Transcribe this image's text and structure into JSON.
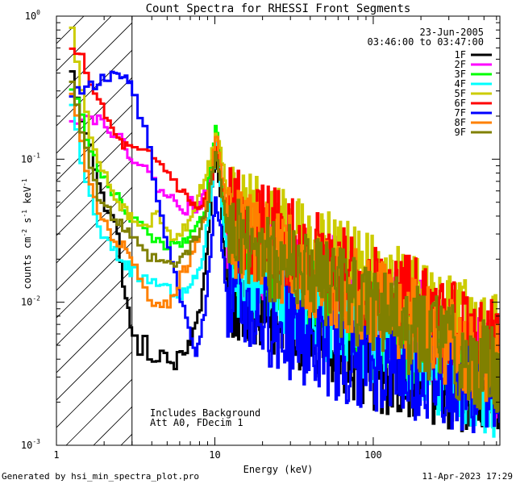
{
  "chart_data": {
    "type": "line",
    "title": "Count Spectra for RHESSI Front Segments",
    "xlabel": "Energy (keV)",
    "ylabel_main": "counts cm",
    "ylabel_exp1": "-2",
    "ylabel_mid": " s",
    "ylabel_exp2": "-1",
    "ylabel_end": " keV",
    "ylabel_exp3": "-1",
    "xscale": "log",
    "yscale": "log",
    "xlim": [
      1,
      630
    ],
    "ylim": [
      0.001,
      1.0
    ],
    "x_ticks": [
      {
        "v": 1,
        "label": "1"
      },
      {
        "v": 10,
        "label": "10"
      },
      {
        "v": 100,
        "label": "100"
      }
    ],
    "y_ticks": [
      {
        "v": 1,
        "base": "10",
        "exp": "0"
      },
      {
        "v": 0.1,
        "base": "10",
        "exp": "-1"
      },
      {
        "v": 0.01,
        "base": "10",
        "exp": "-2"
      },
      {
        "v": 0.001,
        "base": "10",
        "exp": "-3"
      }
    ],
    "date": "23-Jun-2005",
    "time_range": "03:46:00 to 03:47:00",
    "hatch_upper_kev": 3,
    "annotations": [
      "Includes Background",
      "Att A0, FDecim 1"
    ],
    "series": [
      {
        "name": "1F",
        "color": "#000000",
        "seed": 11,
        "noise": 0.5,
        "low": [
          [
            1.2,
            0.38
          ],
          [
            1.3,
            0.28
          ],
          [
            1.4,
            0.2
          ],
          [
            1.5,
            0.16
          ],
          [
            1.6,
            0.12
          ],
          [
            1.7,
            0.09
          ],
          [
            1.8,
            0.07
          ],
          [
            1.9,
            0.055
          ],
          [
            2.0,
            0.045
          ],
          [
            2.2,
            0.038
          ],
          [
            2.4,
            0.03
          ],
          [
            2.5,
            0.02
          ],
          [
            2.6,
            0.013
          ],
          [
            2.8,
            0.009
          ],
          [
            3.0,
            0.0055
          ],
          [
            3.2,
            0.0045
          ],
          [
            3.5,
            0.0055
          ],
          [
            3.8,
            0.0042
          ],
          [
            4.2,
            0.0038
          ],
          [
            4.6,
            0.0048
          ],
          [
            5.0,
            0.0037
          ],
          [
            5.5,
            0.0035
          ],
          [
            6.0,
            0.005
          ],
          [
            6.5,
            0.0045
          ],
          [
            7.0,
            0.0055
          ],
          [
            7.5,
            0.007
          ],
          [
            8.0,
            0.009
          ],
          [
            8.5,
            0.015
          ],
          [
            9.0,
            0.03
          ],
          [
            9.5,
            0.06
          ],
          [
            10.0,
            0.1
          ],
          [
            10.5,
            0.07
          ],
          [
            11,
            0.04
          ],
          [
            11.5,
            0.02
          ],
          [
            12,
            0.012
          ]
        ]
      },
      {
        "name": "2F",
        "color": "#ff00ff",
        "seed": 22,
        "noise": 0.55,
        "low": [
          [
            1.2,
            0.2
          ],
          [
            1.4,
            0.19
          ],
          [
            1.6,
            0.2
          ],
          [
            1.8,
            0.19
          ],
          [
            2.0,
            0.18
          ],
          [
            2.3,
            0.15
          ],
          [
            2.6,
            0.13
          ],
          [
            3.0,
            0.1
          ],
          [
            3.5,
            0.085
          ],
          [
            4.0,
            0.07
          ],
          [
            4.5,
            0.06
          ],
          [
            5.0,
            0.055
          ],
          [
            5.5,
            0.05
          ],
          [
            6.0,
            0.048
          ],
          [
            6.5,
            0.045
          ],
          [
            7.0,
            0.05
          ],
          [
            7.5,
            0.045
          ],
          [
            8.0,
            0.05
          ],
          [
            8.5,
            0.055
          ],
          [
            9.0,
            0.06
          ],
          [
            9.5,
            0.08
          ],
          [
            10,
            0.14
          ],
          [
            10.5,
            0.1
          ],
          [
            11,
            0.07
          ],
          [
            11.5,
            0.045
          ],
          [
            12,
            0.03
          ]
        ]
      },
      {
        "name": "3F",
        "color": "#00ff00",
        "seed": 33,
        "noise": 0.5,
        "low": [
          [
            1.2,
            0.32
          ],
          [
            1.3,
            0.25
          ],
          [
            1.5,
            0.15
          ],
          [
            1.7,
            0.1
          ],
          [
            1.9,
            0.075
          ],
          [
            2.2,
            0.06
          ],
          [
            2.5,
            0.05
          ],
          [
            2.8,
            0.042
          ],
          [
            3.2,
            0.035
          ],
          [
            3.6,
            0.03
          ],
          [
            4.0,
            0.028
          ],
          [
            4.5,
            0.026
          ],
          [
            5.0,
            0.025
          ],
          [
            5.5,
            0.024
          ],
          [
            6.0,
            0.026
          ],
          [
            6.5,
            0.025
          ],
          [
            7.0,
            0.03
          ],
          [
            7.5,
            0.032
          ],
          [
            8,
            0.038
          ],
          [
            8.5,
            0.045
          ],
          [
            9,
            0.07
          ],
          [
            9.5,
            0.1
          ],
          [
            10,
            0.17
          ],
          [
            10.5,
            0.12
          ],
          [
            11,
            0.07
          ],
          [
            11.5,
            0.04
          ],
          [
            12,
            0.025
          ]
        ]
      },
      {
        "name": "4F",
        "color": "#00ffff",
        "seed": 44,
        "noise": 0.5,
        "low": [
          [
            1.2,
            0.24
          ],
          [
            1.3,
            0.16
          ],
          [
            1.4,
            0.1
          ],
          [
            1.5,
            0.07
          ],
          [
            1.6,
            0.052
          ],
          [
            1.7,
            0.04
          ],
          [
            1.8,
            0.032
          ],
          [
            2.0,
            0.027
          ],
          [
            2.2,
            0.024
          ],
          [
            2.5,
            0.02
          ],
          [
            2.8,
            0.018
          ],
          [
            3.0,
            0.016
          ],
          [
            3.3,
            0.015
          ],
          [
            3.7,
            0.014
          ],
          [
            4,
            0.014
          ],
          [
            4.5,
            0.013
          ],
          [
            5,
            0.012
          ],
          [
            5.5,
            0.012
          ],
          [
            6,
            0.011
          ],
          [
            6.5,
            0.012
          ],
          [
            7,
            0.013
          ],
          [
            7.5,
            0.015
          ],
          [
            8,
            0.018
          ],
          [
            8.5,
            0.025
          ],
          [
            9,
            0.04
          ],
          [
            9.5,
            0.07
          ],
          [
            10,
            0.12
          ],
          [
            10.5,
            0.09
          ],
          [
            11,
            0.05
          ],
          [
            11.5,
            0.03
          ],
          [
            12,
            0.018
          ]
        ]
      },
      {
        "name": "5F",
        "color": "#cccc00",
        "seed": 55,
        "noise": 0.5,
        "low": [
          [
            1.2,
            0.8
          ],
          [
            1.3,
            0.5
          ],
          [
            1.4,
            0.3
          ],
          [
            1.5,
            0.2
          ],
          [
            1.6,
            0.14
          ],
          [
            1.8,
            0.1
          ],
          [
            2.0,
            0.08
          ],
          [
            2.2,
            0.06
          ],
          [
            2.5,
            0.048
          ],
          [
            2.8,
            0.04
          ],
          [
            3.2,
            0.035
          ],
          [
            3.6,
            0.032
          ],
          [
            4,
            0.045
          ],
          [
            4.5,
            0.035
          ],
          [
            5,
            0.03
          ],
          [
            5.5,
            0.028
          ],
          [
            6,
            0.03
          ],
          [
            6.5,
            0.035
          ],
          [
            7,
            0.04
          ],
          [
            7.5,
            0.05
          ],
          [
            8,
            0.06
          ],
          [
            8.5,
            0.07
          ],
          [
            9,
            0.09
          ],
          [
            9.5,
            0.11
          ],
          [
            10,
            0.16
          ],
          [
            10.5,
            0.14
          ],
          [
            11,
            0.1
          ],
          [
            11.5,
            0.07
          ],
          [
            12,
            0.045
          ]
        ]
      },
      {
        "name": "6F",
        "color": "#ff0000",
        "seed": 66,
        "noise": 0.55,
        "low": [
          [
            1.2,
            0.55
          ],
          [
            1.3,
            0.6
          ],
          [
            1.4,
            0.5
          ],
          [
            1.5,
            0.42
          ],
          [
            1.6,
            0.35
          ],
          [
            1.7,
            0.3
          ],
          [
            1.8,
            0.25
          ],
          [
            2.0,
            0.2
          ],
          [
            2.2,
            0.16
          ],
          [
            2.5,
            0.13
          ],
          [
            2.8,
            0.12
          ],
          [
            3.2,
            0.11
          ],
          [
            3.6,
            0.11
          ],
          [
            4,
            0.1
          ],
          [
            4.5,
            0.09
          ],
          [
            5,
            0.08
          ],
          [
            5.5,
            0.07
          ],
          [
            6,
            0.06
          ],
          [
            6.5,
            0.055
          ],
          [
            7,
            0.05
          ],
          [
            7.5,
            0.045
          ],
          [
            8,
            0.045
          ],
          [
            8.5,
            0.05
          ],
          [
            9,
            0.06
          ],
          [
            9.5,
            0.07
          ],
          [
            10,
            0.12
          ],
          [
            10.5,
            0.09
          ],
          [
            11,
            0.065
          ],
          [
            11.5,
            0.05
          ],
          [
            12,
            0.04
          ]
        ]
      },
      {
        "name": "7F",
        "color": "#0000ff",
        "seed": 77,
        "noise": 0.5,
        "low": [
          [
            1.2,
            0.3
          ],
          [
            1.4,
            0.3
          ],
          [
            1.6,
            0.32
          ],
          [
            1.8,
            0.35
          ],
          [
            2.0,
            0.38
          ],
          [
            2.2,
            0.38
          ],
          [
            2.5,
            0.37
          ],
          [
            2.8,
            0.37
          ],
          [
            3.0,
            0.3
          ],
          [
            3.2,
            0.22
          ],
          [
            3.5,
            0.16
          ],
          [
            3.8,
            0.11
          ],
          [
            4.0,
            0.08
          ],
          [
            4.3,
            0.05
          ],
          [
            4.6,
            0.035
          ],
          [
            5.0,
            0.025
          ],
          [
            5.5,
            0.015
          ],
          [
            6,
            0.01
          ],
          [
            6.5,
            0.008
          ],
          [
            7,
            0.006
          ],
          [
            7.5,
            0.0045
          ],
          [
            8,
            0.006
          ],
          [
            8.5,
            0.009
          ],
          [
            9,
            0.015
          ],
          [
            9.5,
            0.03
          ],
          [
            10,
            0.05
          ],
          [
            10.5,
            0.04
          ],
          [
            11,
            0.025
          ],
          [
            11.5,
            0.015
          ],
          [
            12,
            0.01
          ]
        ]
      },
      {
        "name": "8F",
        "color": "#ff8000",
        "seed": 88,
        "noise": 0.5,
        "low": [
          [
            1.2,
            0.3
          ],
          [
            1.3,
            0.2
          ],
          [
            1.4,
            0.13
          ],
          [
            1.5,
            0.09
          ],
          [
            1.6,
            0.065
          ],
          [
            1.7,
            0.05
          ],
          [
            1.8,
            0.04
          ],
          [
            2.0,
            0.034
          ],
          [
            2.2,
            0.03
          ],
          [
            2.5,
            0.026
          ],
          [
            2.8,
            0.022
          ],
          [
            3.0,
            0.018
          ],
          [
            3.3,
            0.014
          ],
          [
            3.6,
            0.011
          ],
          [
            4.0,
            0.0095
          ],
          [
            4.5,
            0.009
          ],
          [
            5,
            0.01
          ],
          [
            5.5,
            0.012
          ],
          [
            6,
            0.016
          ],
          [
            6.5,
            0.018
          ],
          [
            7,
            0.02
          ],
          [
            7.5,
            0.025
          ],
          [
            8,
            0.03
          ],
          [
            8.5,
            0.04
          ],
          [
            9,
            0.06
          ],
          [
            9.5,
            0.09
          ],
          [
            10,
            0.15
          ],
          [
            10.5,
            0.12
          ],
          [
            11,
            0.08
          ],
          [
            11.5,
            0.05
          ],
          [
            12,
            0.032
          ]
        ]
      },
      {
        "name": "9F",
        "color": "#808000",
        "seed": 99,
        "noise": 0.5,
        "low": [
          [
            1.2,
            0.35
          ],
          [
            1.3,
            0.25
          ],
          [
            1.4,
            0.17
          ],
          [
            1.5,
            0.12
          ],
          [
            1.6,
            0.09
          ],
          [
            1.7,
            0.068
          ],
          [
            1.8,
            0.055
          ],
          [
            2.0,
            0.045
          ],
          [
            2.2,
            0.04
          ],
          [
            2.5,
            0.035
          ],
          [
            2.8,
            0.03
          ],
          [
            3.0,
            0.026
          ],
          [
            3.3,
            0.023
          ],
          [
            3.6,
            0.021
          ],
          [
            4.0,
            0.02
          ],
          [
            4.5,
            0.019
          ],
          [
            5,
            0.018
          ],
          [
            5.5,
            0.018
          ],
          [
            6,
            0.02
          ],
          [
            6.5,
            0.022
          ],
          [
            7,
            0.025
          ],
          [
            7.5,
            0.028
          ],
          [
            8,
            0.032
          ],
          [
            8.5,
            0.04
          ],
          [
            9,
            0.055
          ],
          [
            9.5,
            0.075
          ],
          [
            10,
            0.11
          ],
          [
            10.5,
            0.09
          ],
          [
            11,
            0.06
          ],
          [
            11.5,
            0.04
          ],
          [
            12,
            0.028
          ]
        ]
      }
    ]
  },
  "footer": {
    "generated_by": "Generated by hsi_min_spectra_plot.pro",
    "timestamp": "11-Apr-2023 17:29"
  }
}
